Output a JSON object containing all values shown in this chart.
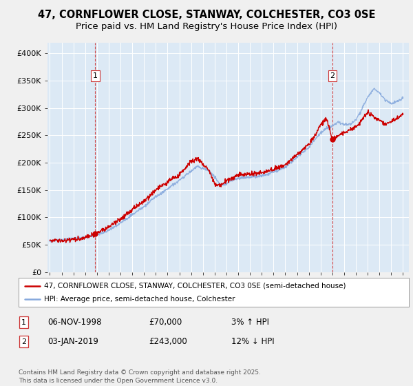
{
  "title": "47, CORNFLOWER CLOSE, STANWAY, COLCHESTER, CO3 0SE",
  "subtitle": "Price paid vs. HM Land Registry's House Price Index (HPI)",
  "title_fontsize": 10.5,
  "subtitle_fontsize": 9.5,
  "background_color": "#f0f0f0",
  "plot_bg_color": "#dce9f5",
  "legend_label_red": "47, CORNFLOWER CLOSE, STANWAY, COLCHESTER, CO3 0SE (semi-detached house)",
  "legend_label_blue": "HPI: Average price, semi-detached house, Colchester",
  "sale1_date": "06-NOV-1998",
  "sale1_price": "£70,000",
  "sale1_hpi": "3% ↑ HPI",
  "sale1_x": 1998.85,
  "sale2_date": "03-JAN-2019",
  "sale2_price": "£243,000",
  "sale2_hpi": "12% ↓ HPI",
  "sale2_x": 2019.01,
  "footer": "Contains HM Land Registry data © Crown copyright and database right 2025.\nThis data is licensed under the Open Government Licence v3.0.",
  "ylim_min": 0,
  "ylim_max": 420000,
  "yticks": [
    0,
    50000,
    100000,
    150000,
    200000,
    250000,
    300000,
    350000,
    400000
  ],
  "ytick_labels": [
    "£0",
    "£50K",
    "£100K",
    "£150K",
    "£200K",
    "£250K",
    "£300K",
    "£350K",
    "£400K"
  ],
  "red_color": "#cc0000",
  "blue_color": "#88aadd",
  "dashed_line_color": "#cc3333",
  "marker_color": "#cc0000",
  "xlim_min": 1994.8,
  "xlim_max": 2025.5,
  "xticks": [
    1995,
    1996,
    1997,
    1998,
    1999,
    2000,
    2001,
    2002,
    2003,
    2004,
    2005,
    2006,
    2007,
    2008,
    2009,
    2010,
    2011,
    2012,
    2013,
    2014,
    2015,
    2016,
    2017,
    2018,
    2019,
    2020,
    2021,
    2022,
    2023,
    2024,
    2025
  ],
  "hpi_key_years": [
    1995,
    1996,
    1997,
    1998,
    1999,
    2000,
    2001,
    2002,
    2003,
    2004,
    2005,
    2006,
    2007,
    2007.5,
    2008,
    2008.5,
    2009,
    2009.5,
    2010,
    2010.5,
    2011,
    2012,
    2013,
    2014,
    2015,
    2016,
    2017,
    2017.5,
    2018,
    2018.5,
    2019,
    2019.5,
    2020,
    2020.5,
    2021,
    2021.5,
    2022,
    2022.5,
    2023,
    2023.5,
    2024,
    2024.5,
    2025
  ],
  "hpi_key_vals": [
    57000,
    59000,
    62000,
    64000,
    68000,
    76000,
    90000,
    105000,
    120000,
    138000,
    152000,
    168000,
    185000,
    193000,
    190000,
    185000,
    175000,
    158000,
    162000,
    168000,
    172000,
    174000,
    176000,
    183000,
    192000,
    210000,
    228000,
    242000,
    255000,
    262000,
    268000,
    275000,
    270000,
    270000,
    278000,
    298000,
    320000,
    335000,
    328000,
    315000,
    308000,
    312000,
    318000
  ],
  "prop_key_years": [
    1995,
    1996,
    1997,
    1998,
    1998.85,
    1999,
    2000,
    2001,
    2002,
    2003,
    2004,
    2005,
    2006,
    2007,
    2007.5,
    2008,
    2008.5,
    2009,
    2009.5,
    2010,
    2010.5,
    2011,
    2012,
    2013,
    2014,
    2015,
    2016,
    2017,
    2017.5,
    2018,
    2018.5,
    2019.01,
    2019.5,
    2020,
    2020.5,
    2021,
    2021.5,
    2022,
    2022.5,
    2023,
    2023.5,
    2024,
    2024.5,
    2025
  ],
  "prop_key_vals": [
    58000,
    57000,
    60000,
    63000,
    70000,
    72000,
    82000,
    98000,
    114000,
    130000,
    150000,
    165000,
    178000,
    203000,
    208000,
    198000,
    188000,
    162000,
    158000,
    167000,
    172000,
    178000,
    180000,
    182000,
    188000,
    197000,
    215000,
    234000,
    250000,
    270000,
    282000,
    243000,
    250000,
    255000,
    260000,
    265000,
    278000,
    292000,
    285000,
    278000,
    270000,
    275000,
    280000,
    290000
  ]
}
